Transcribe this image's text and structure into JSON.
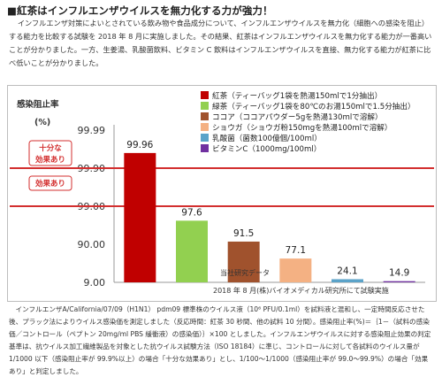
{
  "title": "■紅茶はインフルエンザウイルスを無力化する力が強力！",
  "intro": "インフルエンザ対策によいとされている飲み物や食品成分について、インフルエンザウイルスを無力化（細胞への感染を阻止）する能力を比較する試験を 2018 年 8 月に実施しました。その結果、紅茶はインフルエンザウイルスを無力化する能力が一番高いことが分かりました。一方、生姜湯、乳酸菌飲料、ビタミン C 飲料はインフルエンザウイルスを直接、無力化する能力が紅茶に比べ低いことが分かりました。",
  "chart_data": {
    "type": "bar",
    "ylabel": "感染阻止率",
    "yunit": "(%)",
    "yticks": [
      "99.99",
      "99.90",
      "99.00",
      "90.00",
      "9.00"
    ],
    "threshold_labels": [
      "十分な\n効果あり",
      "効果あり"
    ],
    "threshold_color": "#d32f2f",
    "categories": [
      "紅茶",
      "緑茶",
      "ココア",
      "ショウガ",
      "乳酸菌",
      "ビタミンC"
    ],
    "legend": [
      {
        "name": "紅茶",
        "desc": "（ティーバッグ1袋を熱湯150mlで1分抽出）",
        "color": "#c00000"
      },
      {
        "name": "緑茶",
        "desc": "（ティーバッグ1袋を80℃のお湯150mlで1.5分抽出）",
        "color": "#92d050"
      },
      {
        "name": "ココア",
        "desc": "（ココアパウダー5gを熱湯130mlで溶解）",
        "color": "#a0522d"
      },
      {
        "name": "ショウガ",
        "desc": "（ショウガ粉150mgを熱湯100mlで溶解）",
        "color": "#f4b183"
      },
      {
        "name": "乳酸菌",
        "desc": "（菌数100億個/100ml）",
        "color": "#5ba3c9"
      },
      {
        "name": "ビタミンC",
        "desc": "（1000mg/100ml）",
        "color": "#7030a0"
      }
    ],
    "values": [
      99.96,
      97.6,
      91.5,
      77.1,
      24.1,
      14.9
    ],
    "value_labels": [
      "99.96",
      "97.6",
      "91.5",
      "77.1",
      "24.1",
      "14.9"
    ],
    "source_lines": [
      "当社研究データ",
      "2018 年 8 月(株)バイオメディカル研究所にて試験実施"
    ]
  },
  "notes": "インフルエンザA/California/07/09（H1N1） pdm09 標準株のウイルス液（10⁶ PFU/0.1ml）を試料液と混和し、一定時間反応させた後、プラック法によりウイルス感染価を測定しました（反応時間：紅茶 30 秒間、他の試料 10 分間）。感染阻止率(%)＝｛1－（試料の感染価／コントロール（ペプトン 20mg/ml PBS 緩衝液）の感染価）｝×100 としました。インフルエンザウイルスに対する感染阻止効果の判定基準は、抗ウイルス加工繊維製品を対象とした抗ウイルス試験方法（ISO 18184）に準じ、コントロールに対して各試料のウイルス量が 1/1000 以下（感染阻止率が 99.9%以上）の場合「十分な効果あり」とし、1/100～1/1000（感染阻止率が 99.0～99.9%）の場合「効果あり」と判定しました。"
}
